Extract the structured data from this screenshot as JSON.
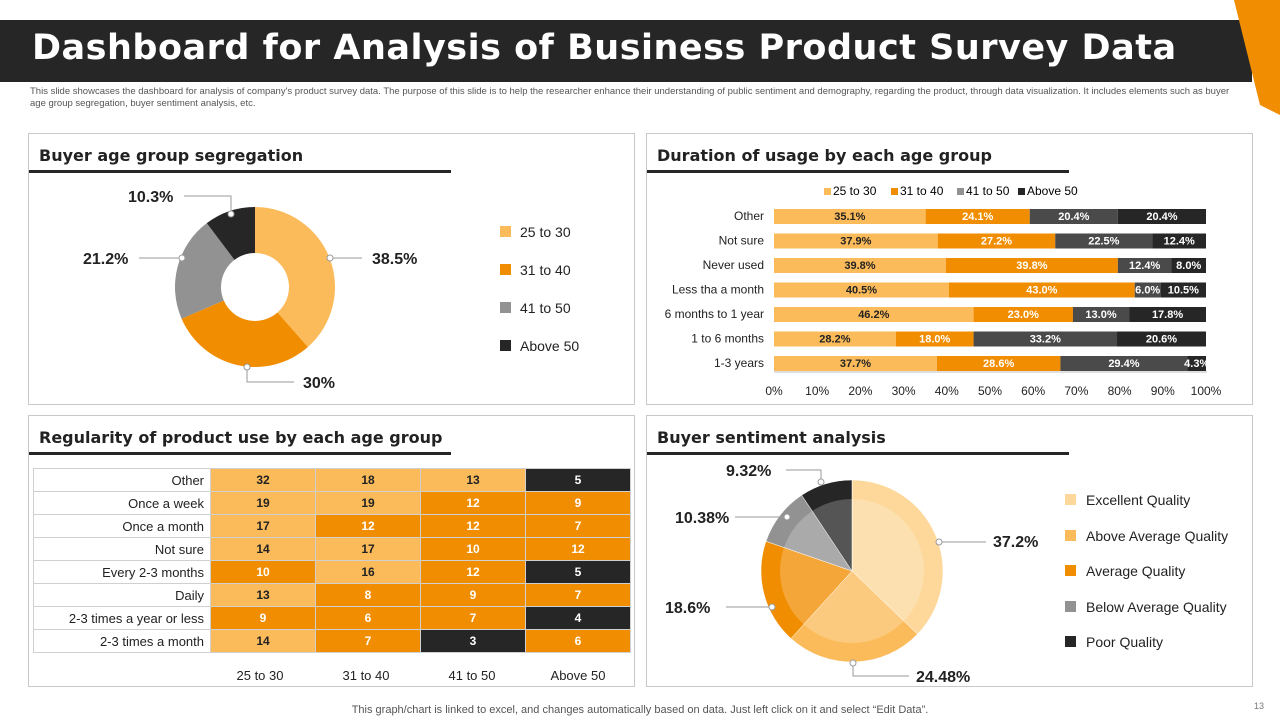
{
  "title": "Dashboard for Analysis of Business Product Survey Data",
  "subtitle": "This slide showcases the dashboard for analysis of company's product survey data. The purpose of this slide is to help the researcher enhance their understanding of public sentiment and demography, regarding the product, through data visualization. It includes elements such as buyer age group segregation, buyer sentiment analysis, etc.",
  "footer": "This graph/chart is linked to excel, and changes automatically based on data. Just left click on it and select “Edit Data”.",
  "page_number": "13",
  "colors": {
    "c1": "#fcbb5a",
    "c2": "#f18d00",
    "c3": "#929292",
    "c4": "#262626",
    "ex": "#fdd89a",
    "header": "#262626",
    "accent": "#f18d00"
  },
  "panels": {
    "age": {
      "title": "Buyer age group segregation"
    },
    "duration": {
      "title": "Duration of usage by each age group"
    },
    "regularity": {
      "title": "Regularity of product use by each age group"
    },
    "sentiment": {
      "title": "Buyer sentiment analysis"
    }
  },
  "chart_data": [
    {
      "id": "age",
      "type": "pie",
      "title": "Buyer age group segregation",
      "labels": [
        "25 to 30",
        "31 to 40",
        "41 to 50",
        "Above 50"
      ],
      "values": [
        38.5,
        30,
        21.2,
        10.3
      ],
      "value_labels": [
        "38.5%",
        "30%",
        "21.2%",
        "10.3%"
      ],
      "legend": "right"
    },
    {
      "id": "duration",
      "type": "bar",
      "orientation": "horizontal",
      "stacked": true,
      "title": "Duration of usage by each age group",
      "categories": [
        "Other",
        "Not sure",
        "Never used",
        "Less tha a month",
        "6 months to 1 year",
        "1 to 6 months",
        "1-3 years"
      ],
      "series": [
        {
          "name": "25 to 30",
          "values": [
            35.1,
            37.9,
            39.8,
            40.5,
            46.2,
            28.2,
            37.7
          ],
          "labels": [
            "35.1%",
            "37.9%",
            "39.8%",
            "40.5%",
            "46.2%",
            "28.2%",
            "37.7%"
          ]
        },
        {
          "name": "31 to 40",
          "values": [
            24.1,
            27.2,
            39.8,
            43.0,
            23.0,
            18.0,
            28.6
          ],
          "labels": [
            "24.1%",
            "27.2%",
            "39.8%",
            "43.0%",
            "23.0%",
            "18.0%",
            "28.6%"
          ]
        },
        {
          "name": "41 to 50",
          "values": [
            20.4,
            22.5,
            12.4,
            6.0,
            13.0,
            33.2,
            29.4
          ],
          "labels": [
            "20.4%",
            "22.5%",
            "12.4%",
            "6.0%",
            "13.0%",
            "33.2%",
            "29.4%"
          ]
        },
        {
          "name": "Above 50",
          "values": [
            20.4,
            12.4,
            8.0,
            10.5,
            17.8,
            20.6,
            4.3
          ],
          "labels": [
            "20.4%",
            "12.4%",
            "8.0%",
            "10.5%",
            "17.8%",
            "20.6%",
            "4.3%"
          ]
        }
      ],
      "xlim": [
        0,
        100
      ],
      "xticks": [
        "0%",
        "10%",
        "20%",
        "30%",
        "40%",
        "50%",
        "60%",
        "70%",
        "80%",
        "90%",
        "100%"
      ],
      "legend": "top"
    },
    {
      "id": "regularity",
      "type": "heatmap",
      "title": "Regularity of product use by each age group",
      "rows": [
        "Other",
        "Once a week",
        "Once a month",
        "Not sure",
        "Every 2-3 months",
        "Daily",
        "2-3 times a year or less",
        "2-3 times a month"
      ],
      "columns": [
        "25 to 30",
        "31 to 40",
        "41 to 50",
        "Above 50"
      ],
      "values": [
        [
          32,
          18,
          13,
          5
        ],
        [
          19,
          19,
          12,
          9
        ],
        [
          17,
          12,
          12,
          7
        ],
        [
          14,
          17,
          10,
          12
        ],
        [
          10,
          16,
          12,
          5
        ],
        [
          13,
          8,
          9,
          7
        ],
        [
          9,
          6,
          7,
          4
        ],
        [
          14,
          7,
          3,
          6
        ]
      ]
    },
    {
      "id": "sentiment",
      "type": "pie",
      "title": "Buyer sentiment analysis",
      "labels": [
        "Excellent Quality",
        "Above Average  Quality",
        "Average  Quality",
        "Below Average  Quality",
        "Poor Quality"
      ],
      "values": [
        37.2,
        24.48,
        18.6,
        10.38,
        9.32
      ],
      "value_labels": [
        "37.2%",
        "24.48%",
        "18.6%",
        "10.38%",
        "9.32%"
      ],
      "legend": "right"
    }
  ]
}
